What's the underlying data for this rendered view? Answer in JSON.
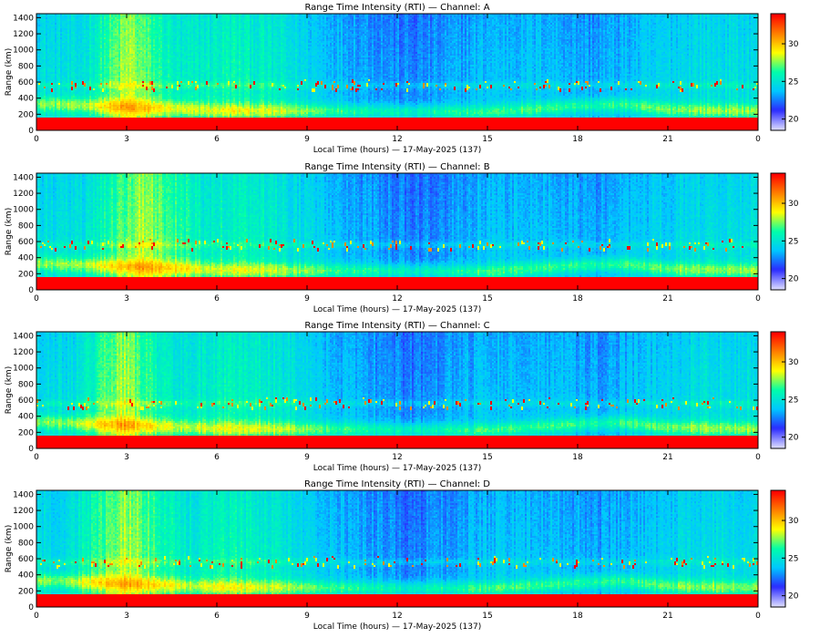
{
  "chart_data": [
    {
      "type": "heatmap",
      "title": "Range Time Intensity (RTI) — Channel: A",
      "xlabel": "Local Time (hours) — 17-May-2025 (137)",
      "ylabel": "Range (km)",
      "x_ticks": [
        "0",
        "3",
        "6",
        "9",
        "12",
        "15",
        "18",
        "21",
        "0"
      ],
      "y_ticks": [
        "0",
        "200",
        "400",
        "600",
        "800",
        "1000",
        "1200",
        "1400"
      ],
      "xlim": [
        0,
        24
      ],
      "ylim": [
        0,
        1450
      ],
      "colorbar": {
        "ticks": [
          "20",
          "25",
          "30"
        ],
        "range": [
          18.5,
          34
        ]
      },
      "features": {
        "ground_clutter_top_km": 150,
        "ionosphere_layer_km": [
          [
            0,
            330
          ],
          [
            3,
            290
          ],
          [
            6,
            250
          ],
          [
            9,
            240
          ],
          [
            12,
            230
          ],
          [
            15,
            225
          ],
          [
            18,
            300
          ],
          [
            19.5,
            320
          ],
          [
            21,
            260
          ],
          [
            24,
            240
          ]
        ],
        "scatter_band_km": 560,
        "bright_daytime_hours": [
          2.6,
          3.6
        ]
      }
    },
    {
      "type": "heatmap",
      "title": "Range Time Intensity (RTI) — Channel: B",
      "xlabel": "Local Time (hours) — 17-May-2025 (137)",
      "ylabel": "Range (km)",
      "x_ticks": [
        "0",
        "3",
        "6",
        "9",
        "12",
        "15",
        "18",
        "21",
        "0"
      ],
      "y_ticks": [
        "0",
        "200",
        "400",
        "600",
        "800",
        "1000",
        "1200",
        "1400"
      ],
      "xlim": [
        0,
        24
      ],
      "ylim": [
        0,
        1450
      ],
      "colorbar": {
        "ticks": [
          "20",
          "25",
          "30"
        ],
        "range": [
          18.5,
          34
        ]
      },
      "features": {
        "ground_clutter_top_km": 150,
        "ionosphere_layer_km": [
          [
            0,
            330
          ],
          [
            3,
            290
          ],
          [
            6,
            250
          ],
          [
            9,
            240
          ],
          [
            12,
            230
          ],
          [
            15,
            225
          ],
          [
            18,
            300
          ],
          [
            19.5,
            320
          ],
          [
            21,
            260
          ],
          [
            24,
            240
          ]
        ],
        "scatter_band_km": 560,
        "bright_daytime_hours": [
          2.7,
          4.3
        ]
      }
    },
    {
      "type": "heatmap",
      "title": "Range Time Intensity (RTI) — Channel: C",
      "xlabel": "Local Time (hours) — 17-May-2025 (137)",
      "ylabel": "Range (km)",
      "x_ticks": [
        "0",
        "3",
        "6",
        "9",
        "12",
        "15",
        "18",
        "21",
        "0"
      ],
      "y_ticks": [
        "0",
        "200",
        "400",
        "600",
        "800",
        "1000",
        "1200",
        "1400"
      ],
      "xlim": [
        0,
        24
      ],
      "ylim": [
        0,
        1450
      ],
      "colorbar": {
        "ticks": [
          "20",
          "25",
          "30"
        ],
        "range": [
          18.5,
          34
        ]
      },
      "features": {
        "ground_clutter_top_km": 150,
        "ionosphere_layer_km": [
          [
            0,
            330
          ],
          [
            3,
            290
          ],
          [
            6,
            250
          ],
          [
            9,
            240
          ],
          [
            12,
            230
          ],
          [
            15,
            225
          ],
          [
            18,
            300
          ],
          [
            19.5,
            320
          ],
          [
            21,
            260
          ],
          [
            24,
            240
          ]
        ],
        "scatter_band_km": 560,
        "bright_daytime_hours": [
          2.4,
          3.4
        ]
      }
    },
    {
      "type": "heatmap",
      "title": "Range Time Intensity (RTI) — Channel: D",
      "xlabel": "Local Time (hours) — 17-May-2025 (137)",
      "ylabel": "Range (km)",
      "x_ticks": [
        "0",
        "3",
        "6",
        "9",
        "12",
        "15",
        "18",
        "21",
        "0"
      ],
      "y_ticks": [
        "0",
        "200",
        "400",
        "600",
        "800",
        "1000",
        "1200",
        "1400"
      ],
      "xlim": [
        0,
        24
      ],
      "ylim": [
        0,
        1450
      ],
      "colorbar": {
        "ticks": [
          "20",
          "25",
          "30"
        ],
        "range": [
          18.5,
          34
        ]
      },
      "features": {
        "ground_clutter_top_km": 150,
        "ionosphere_layer_km": [
          [
            0,
            330
          ],
          [
            3,
            290
          ],
          [
            6,
            250
          ],
          [
            9,
            240
          ],
          [
            12,
            230
          ],
          [
            15,
            225
          ],
          [
            18,
            300
          ],
          [
            19.5,
            320
          ],
          [
            21,
            260
          ],
          [
            24,
            240
          ]
        ],
        "scatter_band_km": 560,
        "bright_daytime_hours": [
          2.2,
          3.8
        ]
      }
    }
  ],
  "colors": {
    "background": "#ffffff",
    "axes": "#000000",
    "clutter": "#ff0000",
    "colormap": [
      "#d8d8ff",
      "#2b2bff",
      "#00c8ff",
      "#00ffaa",
      "#ffff00",
      "#ff8000",
      "#ff0000"
    ]
  }
}
